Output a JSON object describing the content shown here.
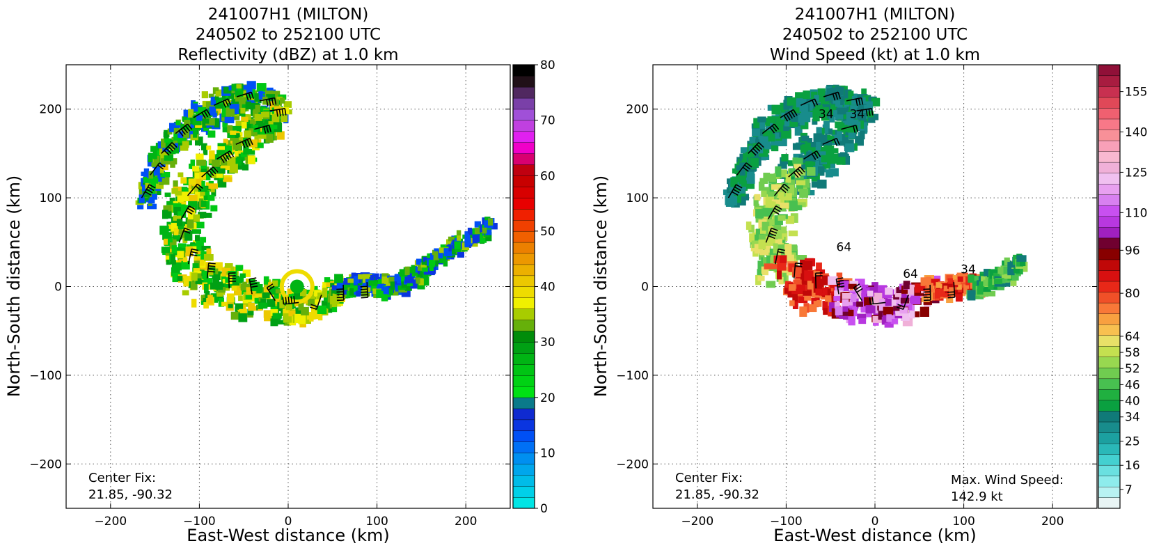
{
  "chart_data": [
    {
      "type": "heatmap",
      "title_lines": [
        "241007H1 (MILTON)",
        "240502 to 252100 UTC",
        "Reflectivity (dBZ) at 1.0 km"
      ],
      "xlabel": "East-West distance (km)",
      "ylabel": "North-South distance (km)",
      "xlim": [
        -250,
        250
      ],
      "ylim": [
        -250,
        250
      ],
      "xticks": [
        -200,
        -100,
        0,
        100,
        200
      ],
      "yticks": [
        -200,
        -100,
        0,
        100,
        200
      ],
      "grid": true,
      "annotation": {
        "lines": [
          "Center Fix:",
          "21.85, -90.32"
        ]
      },
      "colorbar": {
        "min": 0,
        "max": 80,
        "ticks": [
          0,
          10,
          20,
          30,
          40,
          50,
          60,
          70,
          80
        ],
        "colors": [
          "#00e5e5",
          "#00d0e8",
          "#00bce8",
          "#00a6ec",
          "#008ff0",
          "#0070f5",
          "#0050f5",
          "#0a35e0",
          "#0f2ad0",
          "#0a7a8a",
          "#00e014",
          "#00d214",
          "#00c414",
          "#00b414",
          "#00a014",
          "#008c0a",
          "#66b00a",
          "#a8cc00",
          "#f0f000",
          "#eedc00",
          "#ecc800",
          "#ecb000",
          "#ec9800",
          "#ec8000",
          "#f06000",
          "#f04000",
          "#f02000",
          "#e80000",
          "#d80000",
          "#c80000",
          "#c00010",
          "#d80070",
          "#f000c8",
          "#e020f0",
          "#c040e0",
          "#a050d8",
          "#7a40a8",
          "#502860",
          "#201018",
          "#000000"
        ]
      },
      "field": {
        "type": "spiral",
        "segments": [
          {
            "x": -165,
            "y": 100,
            "w": 9
          },
          {
            "x": -150,
            "y": 140,
            "w": 12
          },
          {
            "x": -125,
            "y": 175,
            "w": 16
          },
          {
            "x": -95,
            "y": 200,
            "w": 20
          },
          {
            "x": -55,
            "y": 215,
            "w": 20
          },
          {
            "x": -15,
            "y": 205,
            "w": 16
          },
          {
            "x": -40,
            "y": 175,
            "w": 22
          },
          {
            "x": -85,
            "y": 140,
            "w": 24
          },
          {
            "x": -115,
            "y": 100,
            "w": 24
          },
          {
            "x": -125,
            "y": 55,
            "w": 24
          },
          {
            "x": -110,
            "y": 20,
            "w": 24
          },
          {
            "x": -75,
            "y": 0,
            "w": 24
          },
          {
            "x": -35,
            "y": -10,
            "w": 24
          },
          {
            "x": 0,
            "y": -20,
            "w": 20
          },
          {
            "x": 30,
            "y": -15,
            "w": 18
          },
          {
            "x": 50,
            "y": 0,
            "w": 14
          },
          {
            "x": 80,
            "y": 5,
            "w": 13
          },
          {
            "x": 115,
            "y": 5,
            "w": 12
          },
          {
            "x": 140,
            "y": 15,
            "w": 10
          },
          {
            "x": 175,
            "y": 45,
            "w": 8
          },
          {
            "x": 205,
            "y": 60,
            "w": 10
          },
          {
            "x": 225,
            "y": 75,
            "w": 8
          }
        ]
      },
      "barb_speeds": [
        60,
        40
      ]
    },
    {
      "type": "heatmap",
      "title_lines": [
        "241007H1 (MILTON)",
        "240502 to 252100 UTC",
        "Wind Speed (kt) at 1.0 km"
      ],
      "xlabel": "East-West distance (km)",
      "ylabel": "North-South distance (km)",
      "xlim": [
        -250,
        250
      ],
      "ylim": [
        -250,
        250
      ],
      "xticks": [
        -200,
        -100,
        0,
        100,
        200
      ],
      "yticks": [
        -200,
        -100,
        0,
        100,
        200
      ],
      "grid": true,
      "annotation": {
        "lines": [
          "Center Fix:",
          "21.85, -90.32"
        ]
      },
      "annotation2": {
        "lines": [
          "Max. Wind Speed:",
          "142.9 kt"
        ]
      },
      "contour_labels": [
        "34",
        "64",
        "64",
        "34",
        "34"
      ],
      "colorbar": {
        "min": 0,
        "max": 165,
        "tick_labels": [
          "7",
          "16",
          "25",
          "34",
          "40",
          "46",
          "52",
          "58",
          "64",
          "80",
          "96",
          "110",
          "125",
          "140",
          "155"
        ],
        "colors": [
          "#e8f4f4",
          "#b8f2f2",
          "#8eecec",
          "#6ae0e0",
          "#44d0d0",
          "#2ab8b8",
          "#1ca0a0",
          "#188c8c",
          "#107a78",
          "#0aa040",
          "#20b040",
          "#48c050",
          "#70cc50",
          "#98d850",
          "#c4e050",
          "#e8e068",
          "#f8c050",
          "#f8a040",
          "#f87838",
          "#f05028",
          "#e82818",
          "#d81010",
          "#c00808",
          "#880000",
          "#700030",
          "#a020c0",
          "#b838e0",
          "#c850f0",
          "#d880f0",
          "#e8a0f0",
          "#f0c0f0",
          "#f0b0d8",
          "#f8b8d0",
          "#f8a0b8",
          "#f89098",
          "#f87888",
          "#f06070",
          "#e04858",
          "#c83050",
          "#a81c40",
          "#901038"
        ],
        "tick_positions": [
          7,
          16,
          25,
          34,
          40,
          46,
          52,
          58,
          64,
          80,
          96,
          110,
          125,
          140,
          155
        ]
      },
      "max_wind_kt": 142.9
    }
  ]
}
